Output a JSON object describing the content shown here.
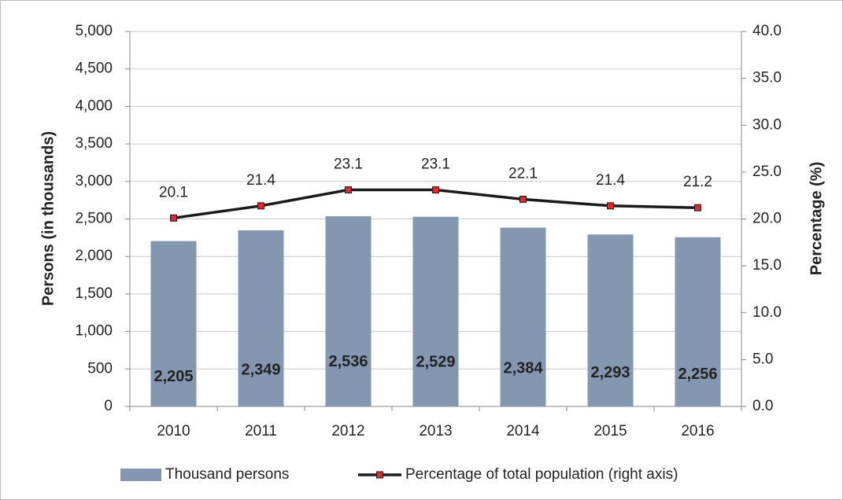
{
  "chart_data": {
    "type": "bar",
    "categories": [
      "2010",
      "2011",
      "2012",
      "2013",
      "2014",
      "2015",
      "2016"
    ],
    "y_label": "Persons (in thousands)",
    "y2_label": "Percentage (%)",
    "ylim": [
      0,
      5000
    ],
    "yticks": [
      0,
      500,
      {
        "value": 1000,
        "label": "1,000"
      },
      {
        "value": 1500,
        "label": "1,500"
      },
      {
        "value": 2000,
        "label": "2,000"
      },
      {
        "value": 2500,
        "label": "2,500"
      },
      {
        "value": 3000,
        "label": "3,000"
      },
      {
        "value": 3500,
        "label": "3,500"
      },
      {
        "value": 4000,
        "label": "4,000"
      },
      {
        "value": 4500,
        "label": "4,500"
      },
      {
        "value": 5000,
        "label": "5,000"
      }
    ],
    "y2lim": [
      0,
      40
    ],
    "y2ticks": [
      {
        "value": 0,
        "label": "0.0"
      },
      {
        "value": 5,
        "label": "5.0"
      },
      {
        "value": 10,
        "label": "10.0"
      },
      {
        "value": 15,
        "label": "15.0"
      },
      {
        "value": 20,
        "label": "20.0"
      },
      {
        "value": 25,
        "label": "25.0"
      },
      {
        "value": 30,
        "label": "30.0"
      },
      {
        "value": 35,
        "label": "35.0"
      },
      {
        "value": 40,
        "label": "40.0"
      }
    ],
    "grid": true,
    "legend": "bottom",
    "series": [
      {
        "name": "Thousand persons",
        "type": "bar",
        "color": "#8497b0",
        "values": [
          2205,
          2349,
          2536,
          2529,
          2384,
          2293,
          2256
        ],
        "value_labels": [
          "2,205",
          "2,349",
          "2,536",
          "2,529",
          "2,384",
          "2,293",
          "2,256"
        ]
      },
      {
        "name": "Percentage of total population (right axis)",
        "type": "line",
        "axis": "y2",
        "color": "#1a1a1a",
        "marker_color": "#e8262a",
        "values": [
          20.1,
          21.4,
          23.1,
          23.1,
          22.1,
          21.4,
          21.2
        ]
      }
    ]
  }
}
